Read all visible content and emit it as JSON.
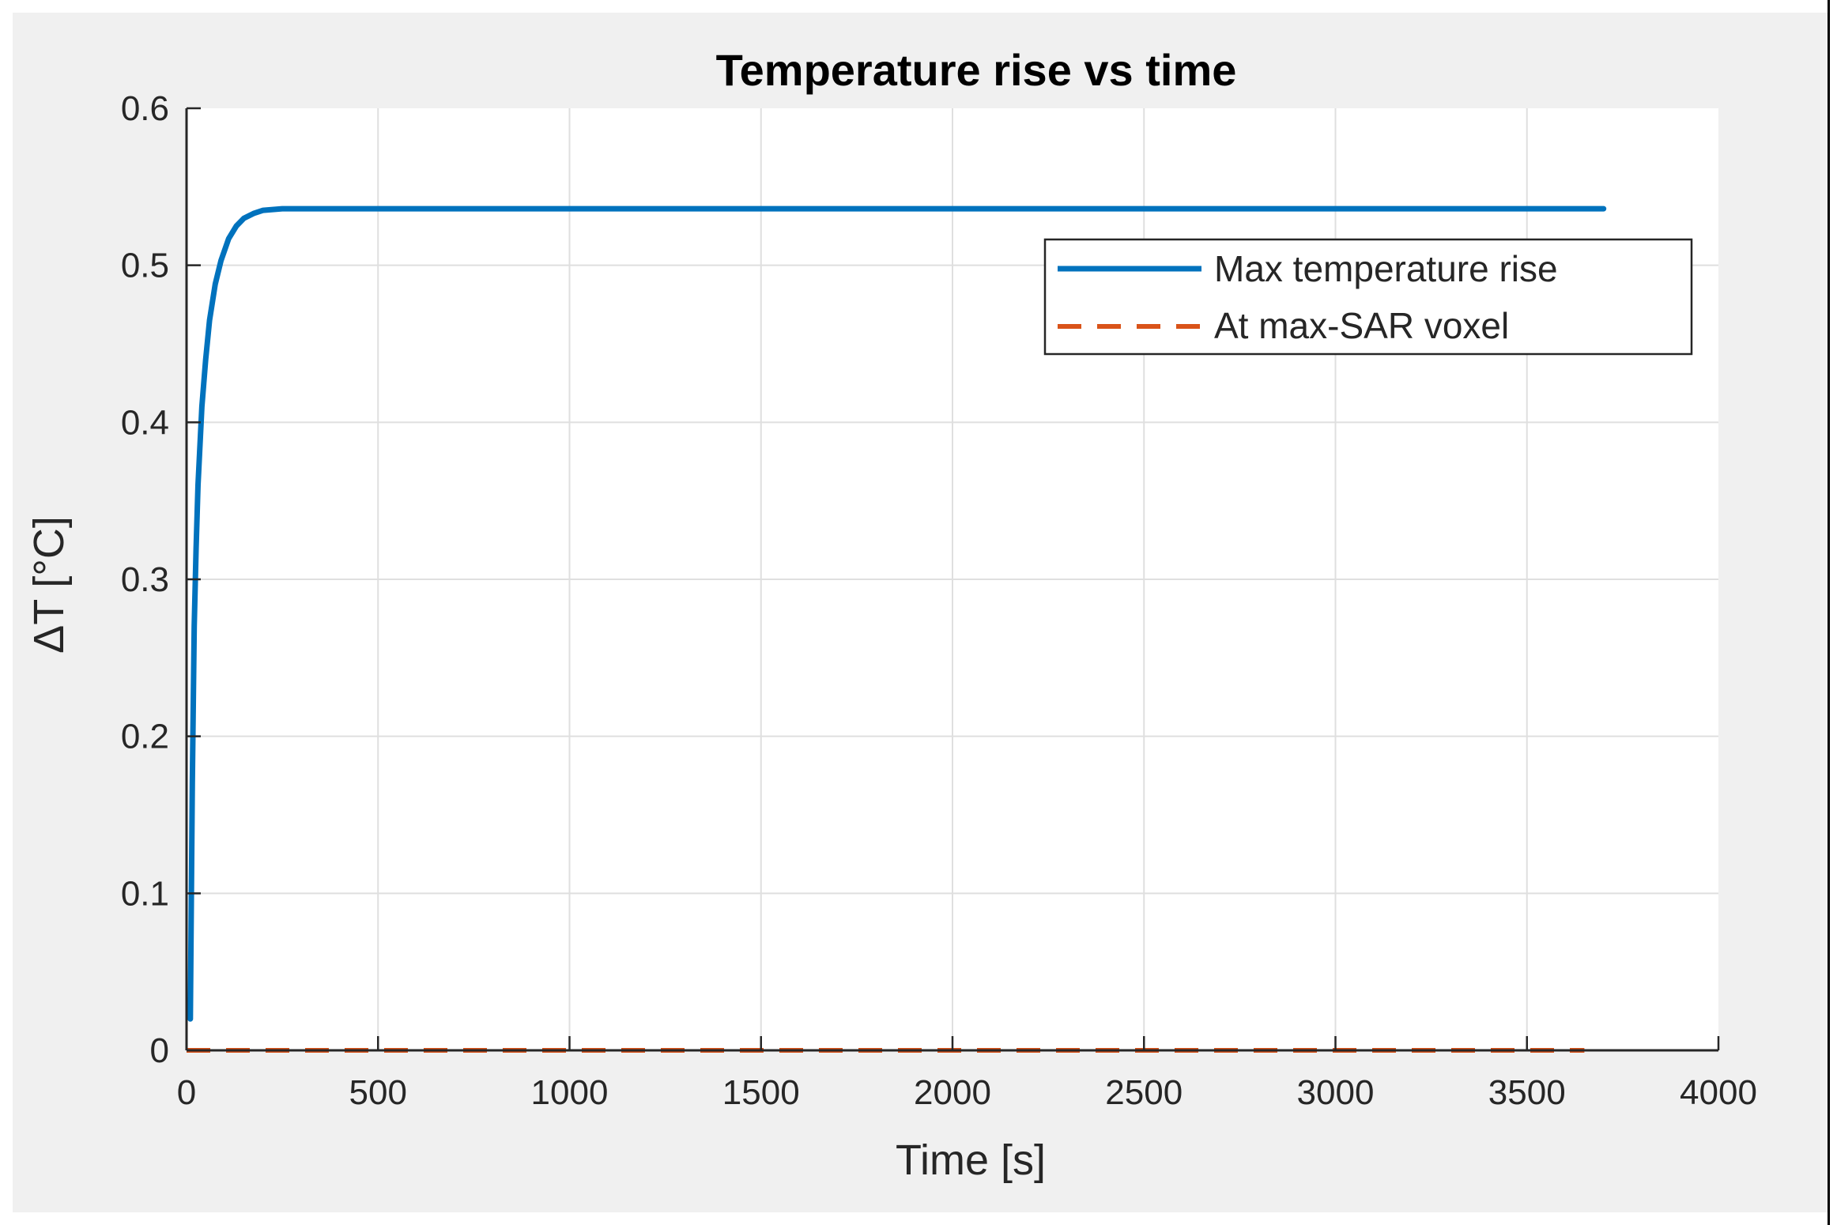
{
  "chart_data": {
    "type": "line",
    "title": "Temperature rise vs time",
    "xlabel": "Time [s]",
    "ylabel": "ΔT [°C]",
    "xlim": [
      0,
      4000
    ],
    "ylim": [
      0,
      0.6
    ],
    "xticks": [
      0,
      500,
      1000,
      1500,
      2000,
      2500,
      3000,
      3500,
      4000
    ],
    "xtick_labels": [
      "0",
      "500",
      "1000",
      "1500",
      "2000",
      "2500",
      "3000",
      "3500",
      "4000"
    ],
    "yticks": [
      0,
      0.1,
      0.2,
      0.3,
      0.4,
      0.5,
      0.6
    ],
    "ytick_labels": [
      "0",
      "0.1",
      "0.2",
      "0.3",
      "0.4",
      "0.5",
      "0.6"
    ],
    "grid": true,
    "legend_position": "top-right",
    "series": [
      {
        "name": "Max temperature rise",
        "color": "#0072BD",
        "style": "solid",
        "x": [
          10,
          15,
          20,
          25,
          30,
          40,
          50,
          60,
          75,
          90,
          110,
          130,
          150,
          175,
          200,
          250,
          300,
          400,
          600,
          1000,
          1500,
          2000,
          2500,
          3000,
          3500,
          3700
        ],
        "y": [
          0.02,
          0.17,
          0.27,
          0.32,
          0.36,
          0.41,
          0.44,
          0.465,
          0.488,
          0.503,
          0.517,
          0.525,
          0.53,
          0.533,
          0.535,
          0.536,
          0.536,
          0.536,
          0.536,
          0.536,
          0.536,
          0.536,
          0.536,
          0.536,
          0.536,
          0.536
        ]
      },
      {
        "name": "At max-SAR voxel",
        "color": "#D95319",
        "style": "dashed",
        "x": [
          0,
          3650
        ],
        "y": [
          0,
          0
        ]
      }
    ]
  }
}
